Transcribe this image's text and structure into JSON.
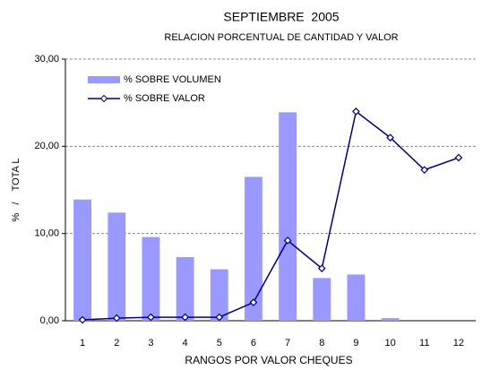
{
  "chart_data": {
    "type": "bar_line",
    "title": "SEPTIEMBRE  2005",
    "subtitle": "RELACION PORCENTUAL DE CANTIDAD Y VALOR",
    "x_label": "RANGOS POR VALOR CHEQUES",
    "y_label": "%   /    TOTA L",
    "categories": [
      "1",
      "2",
      "3",
      "4",
      "5",
      "6",
      "7",
      "8",
      "9",
      "10",
      "11",
      "12"
    ],
    "series": [
      {
        "name": "% SOBRE VOLUMEN",
        "type": "bar",
        "color": "#9999ff",
        "values": [
          13.9,
          12.4,
          9.6,
          7.3,
          5.9,
          16.5,
          23.9,
          4.9,
          5.3,
          0.3,
          0,
          0
        ]
      },
      {
        "name": "% SOBRE VALOR",
        "type": "line",
        "color": "#000080",
        "values": [
          0.1,
          0.3,
          0.4,
          0.4,
          0.4,
          2.1,
          9.2,
          6.0,
          24.0,
          21.0,
          17.3,
          18.7
        ]
      }
    ],
    "ylim": [
      0,
      30
    ],
    "yticks": [
      {
        "value": 0,
        "label": "0,00"
      },
      {
        "value": 10,
        "label": "10,00"
      },
      {
        "value": 20,
        "label": "20,00"
      },
      {
        "value": 30,
        "label": "30,00"
      }
    ],
    "grid": true,
    "legend": "upper left"
  }
}
